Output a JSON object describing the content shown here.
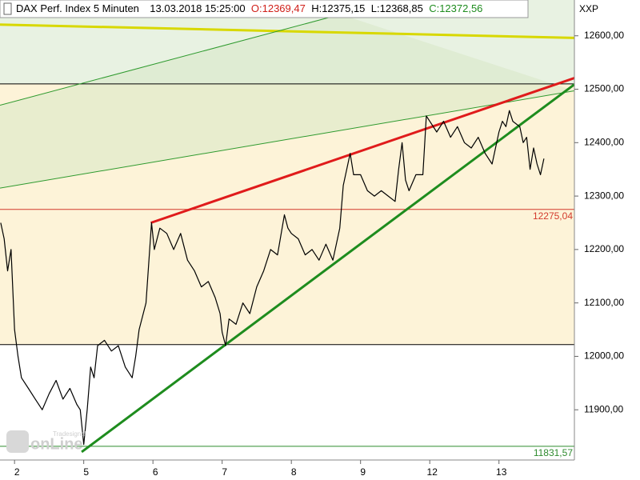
{
  "chart_data": {
    "type": "line",
    "title": "DAX Perf. Index 5 Minuten",
    "timestamp": "13.03.2018 15:25:00",
    "ohlc": [
      "O:12369,47",
      "H:12375,15",
      "L:12368,85",
      "C:12372,56"
    ],
    "y_axis_label": "XXP",
    "watermark": "onLine",
    "watermark_brand": "Tradesignal",
    "xlim": [
      -0.21,
      8.09
    ],
    "xticks": [
      {
        "value": 0,
        "label": "2"
      },
      {
        "value": 1,
        "label": "5"
      },
      {
        "value": 2,
        "label": "6"
      },
      {
        "value": 3,
        "label": "7"
      },
      {
        "value": 4,
        "label": "8"
      },
      {
        "value": 5,
        "label": "9"
      },
      {
        "value": 6,
        "label": "12"
      },
      {
        "value": 7,
        "label": "13"
      }
    ],
    "ylim": [
      11806,
      12667
    ],
    "yticks": [
      {
        "value": 11900,
        "label": "11900,00"
      },
      {
        "value": 12000,
        "label": "12000,00"
      },
      {
        "value": 12100,
        "label": "12100,00"
      },
      {
        "value": 12200,
        "label": "12200,00"
      },
      {
        "value": 12300,
        "label": "12300,00"
      },
      {
        "value": 12400,
        "label": "12400,00"
      },
      {
        "value": 12500,
        "label": "12500,00"
      },
      {
        "value": 12600,
        "label": "12600,00"
      }
    ],
    "bands": [
      {
        "from": 12510,
        "to": 12667,
        "color": "#e8f2e2"
      },
      {
        "from": 12022,
        "to": 12510,
        "color": "#fdf3d8"
      }
    ],
    "levels": [
      {
        "value": 12275.04,
        "label": "12275,04",
        "color": "#d33a2c"
      },
      {
        "value": 11831.57,
        "label": "11831,57",
        "color": "#2e8b2e"
      },
      {
        "value": 12510,
        "color": "#000000"
      },
      {
        "value": 12022,
        "color": "#000000"
      }
    ],
    "channel": {
      "color": "#d7e8c6"
    },
    "trendlines": [
      {
        "x": [
          -0.21,
          8.09
        ],
        "y": [
          12621,
          12596
        ],
        "color": "#d8d800",
        "thick": true
      },
      {
        "x": [
          -0.21,
          4.71
        ],
        "y": [
          12470,
          12640
        ],
        "color": "#2e9a2e",
        "thick": false
      },
      {
        "x": [
          -0.21,
          8.09
        ],
        "y": [
          12315,
          12497
        ],
        "color": "#2e9a2e",
        "thick": false
      },
      {
        "x": [
          1.97,
          8.09
        ],
        "y": [
          12250,
          12521
        ],
        "color": "#e01b1b",
        "thick": true
      },
      {
        "x": [
          0.97,
          8.09
        ],
        "y": [
          11821,
          12509
        ],
        "color": "#1e8c1e",
        "thick": true
      }
    ],
    "series": [
      {
        "name": "DAX",
        "color": "#000000",
        "x": [
          -0.2,
          -0.15,
          -0.1,
          -0.05,
          0,
          0.05,
          0.1,
          0.2,
          0.3,
          0.4,
          0.5,
          0.6,
          0.7,
          0.8,
          0.9,
          0.95,
          1.0,
          1.05,
          1.1,
          1.15,
          1.2,
          1.3,
          1.4,
          1.5,
          1.6,
          1.7,
          1.75,
          1.8,
          1.9,
          1.98,
          2.02,
          2.1,
          2.2,
          2.3,
          2.4,
          2.5,
          2.6,
          2.7,
          2.8,
          2.9,
          2.97,
          3.0,
          3.05,
          3.1,
          3.2,
          3.3,
          3.4,
          3.5,
          3.6,
          3.7,
          3.8,
          3.9,
          3.95,
          4.0,
          4.1,
          4.2,
          4.3,
          4.4,
          4.5,
          4.6,
          4.7,
          4.75,
          4.85,
          4.9,
          5.0,
          5.1,
          5.2,
          5.3,
          5.4,
          5.5,
          5.55,
          5.6,
          5.65,
          5.7,
          5.8,
          5.9,
          5.95,
          6.0,
          6.1,
          6.2,
          6.3,
          6.4,
          6.5,
          6.6,
          6.7,
          6.8,
          6.9,
          6.95,
          7.0,
          7.05,
          7.1,
          7.15,
          7.2,
          7.3,
          7.35,
          7.4,
          7.45,
          7.5,
          7.55,
          7.6,
          7.65
        ],
        "values": [
          12250,
          12220,
          12160,
          12200,
          12050,
          12000,
          11960,
          11940,
          11920,
          11900,
          11930,
          11955,
          11920,
          11940,
          11910,
          11900,
          11835,
          11900,
          11980,
          11960,
          12020,
          12030,
          12010,
          12020,
          11980,
          11960,
          12000,
          12050,
          12100,
          12250,
          12200,
          12240,
          12230,
          12200,
          12230,
          12180,
          12160,
          12130,
          12140,
          12110,
          12080,
          12045,
          12020,
          12070,
          12060,
          12100,
          12080,
          12130,
          12160,
          12200,
          12190,
          12265,
          12240,
          12230,
          12220,
          12190,
          12200,
          12180,
          12210,
          12180,
          12240,
          12320,
          12380,
          12340,
          12340,
          12310,
          12300,
          12310,
          12300,
          12290,
          12350,
          12400,
          12330,
          12310,
          12340,
          12340,
          12450,
          12440,
          12420,
          12440,
          12410,
          12430,
          12400,
          12390,
          12410,
          12380,
          12360,
          12390,
          12420,
          12440,
          12430,
          12460,
          12440,
          12430,
          12400,
          12410,
          12350,
          12390,
          12360,
          12340,
          12370
        ]
      }
    ]
  }
}
